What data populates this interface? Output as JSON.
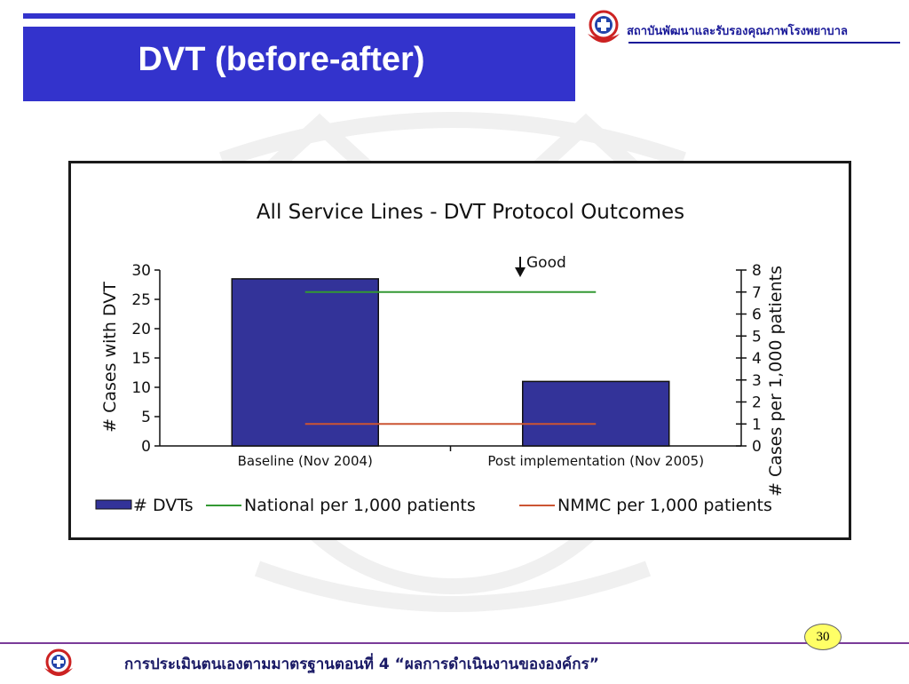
{
  "slide": {
    "title": "DVT (before-after)",
    "org_name": "สถาบันพัฒนาและรับรองคุณภาพโรงพยาบาล",
    "footer": "การประเมินตนเองตามมาตรฐานตอนที่ 4 “ผลการดำเนินงานขององค์กร”",
    "page_number": "30"
  },
  "colors": {
    "title_bg": "#3333cc",
    "bar": "#333399",
    "national": "#339933",
    "nmmc": "#cc5533"
  },
  "chart_data": {
    "type": "bar",
    "title": "All Service Lines - DVT Protocol Outcomes",
    "categories": [
      "Baseline (Nov 2004)",
      "Post implementation (Nov 2005)"
    ],
    "series": [
      {
        "name": "# DVTs",
        "type": "bar",
        "axis": "left",
        "values": [
          28.5,
          11
        ]
      },
      {
        "name": "National per 1,000 patients",
        "type": "line",
        "axis": "right",
        "values": [
          7,
          7
        ]
      },
      {
        "name": "NMMC per 1,000 patients",
        "type": "line",
        "axis": "right",
        "values": [
          1,
          1
        ]
      }
    ],
    "ylabel_left": "# Cases with DVT",
    "ylabel_right": "# Cases per 1,000 patients",
    "ylim_left": [
      0,
      30
    ],
    "yticks_left": [
      "0",
      "5",
      "10",
      "15",
      "20",
      "25",
      "30"
    ],
    "ylim_right": [
      0,
      8
    ],
    "yticks_right": [
      "0",
      "1",
      "2",
      "3",
      "4",
      "5",
      "6",
      "7",
      "8"
    ],
    "annotation": "Good",
    "grid": false,
    "legend_position": "bottom"
  }
}
